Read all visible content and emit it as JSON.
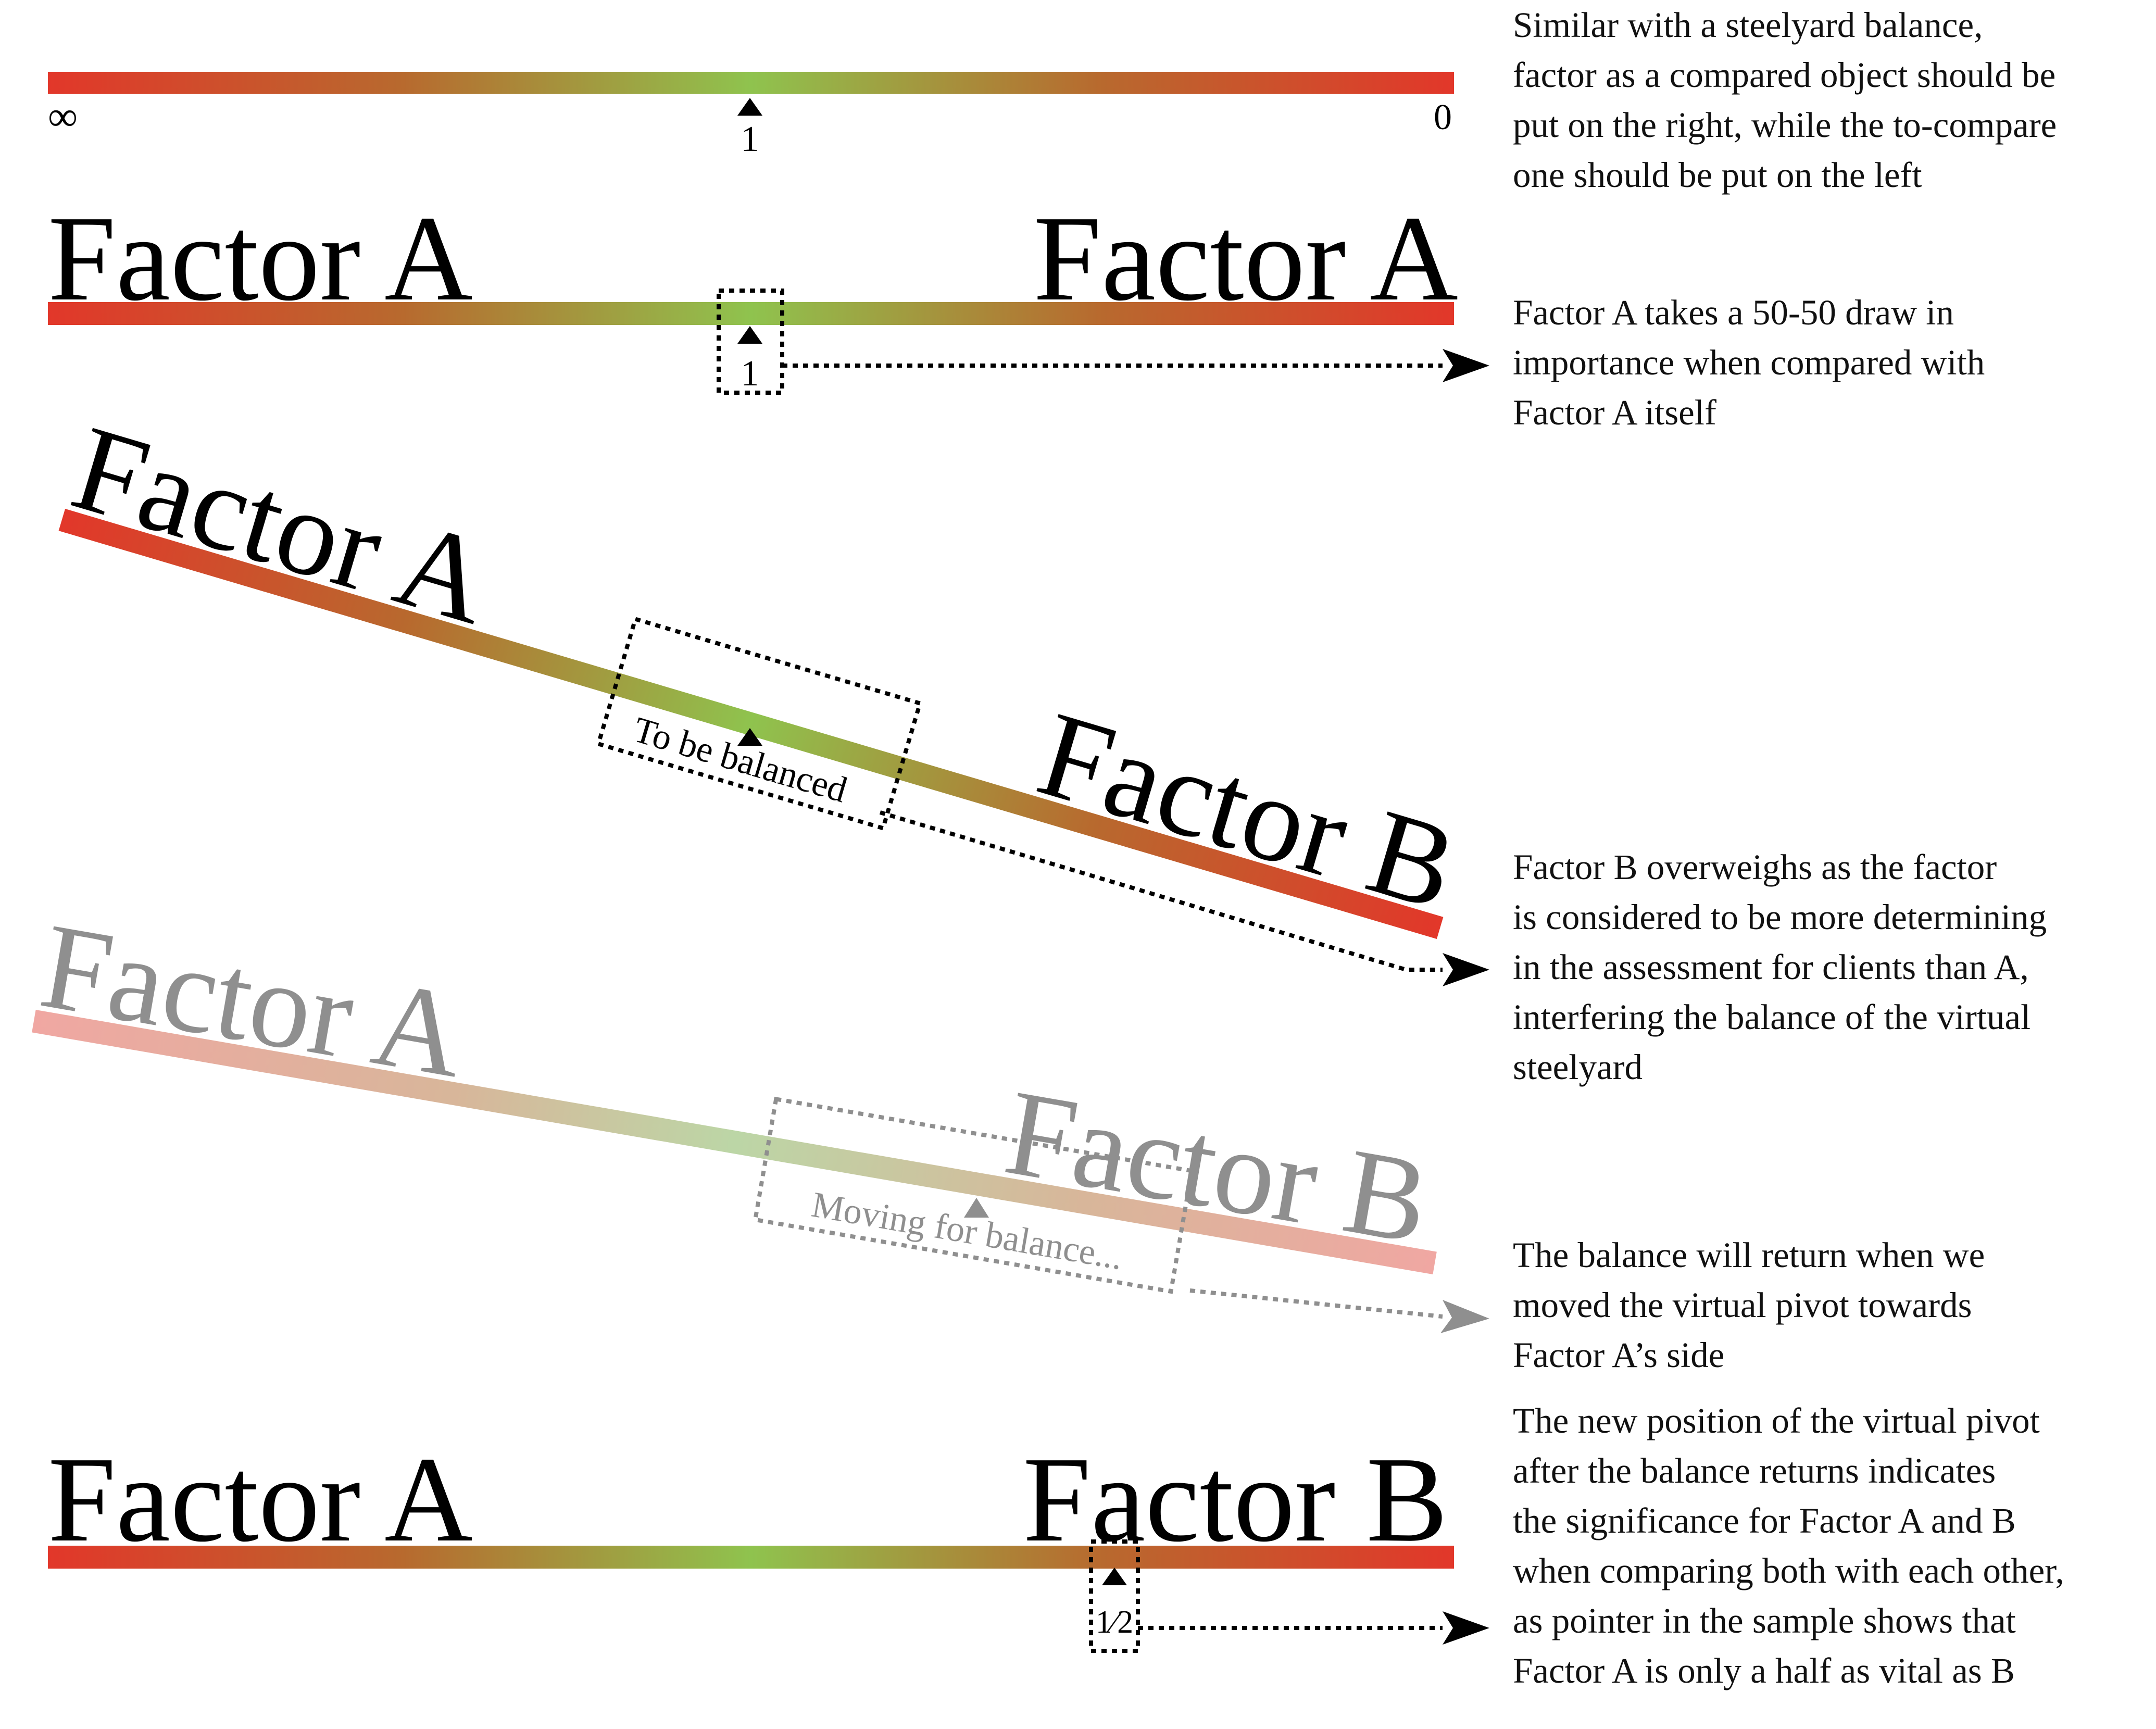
{
  "scale": {
    "left_label": "∞",
    "center_label": "1",
    "right_label": "0"
  },
  "panel_equal": {
    "left_factor": "Factor A",
    "right_factor": "Factor A",
    "pivot_label": "1"
  },
  "panel_tilted": {
    "left_factor": "Factor A",
    "right_factor": "Factor B",
    "box_label": "To be balanced"
  },
  "panel_moving": {
    "left_factor": "Factor A",
    "right_factor": "Factor B",
    "box_label": "Moving for balance..."
  },
  "panel_final": {
    "left_factor": "Factor A",
    "right_factor": "Factor B",
    "pivot_label": "1⁄2"
  },
  "notes": {
    "note1": "Similar with a steelyard balance,\nfactor as a compared object should be\nput on the right, while the to-compare\none should be put on the left",
    "note2": "Factor A takes a 50-50 draw in\nimportance when compared with\nFactor A itself",
    "note3": "Factor B overweighs as the factor\nis considered to be more determining\nin the assessment for clients than A,\ninterfering the balance of the virtual\nsteelyard",
    "note4": "The balance will return when we\nmoved the virtual pivot towards\nFactor A’s side",
    "note5": "The new position of the virtual pivot\nafter the balance returns indicates\nthe significance for Factor A and B\nwhen comparing both with each other,\nas pointer in the sample shows that\nFactor A is only a half as vital as B"
  },
  "colors": {
    "bar_end": "#e2372a",
    "bar_mid": "#8bc34a",
    "bar_quarter": "#b8692e",
    "ink": "#000000",
    "faded": "#8f8f8f"
  }
}
